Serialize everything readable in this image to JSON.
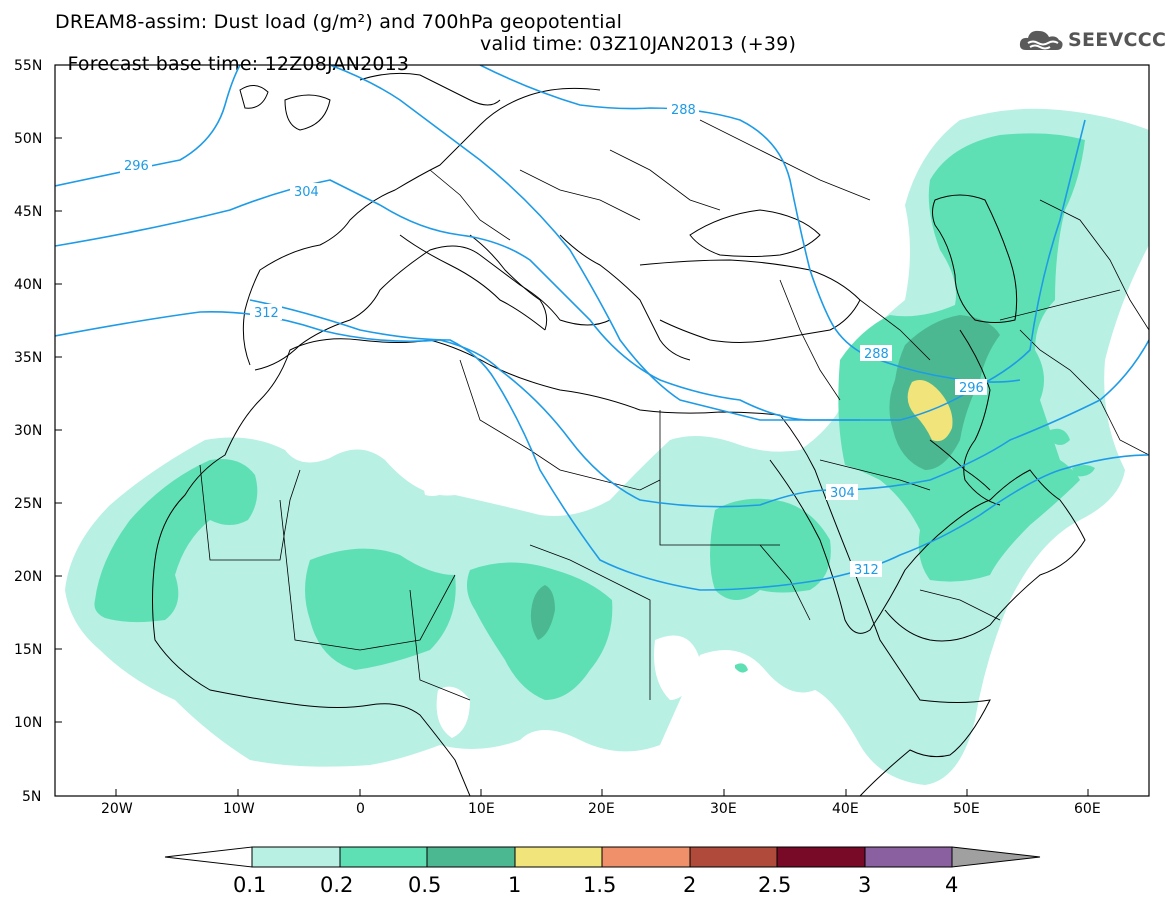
{
  "title": {
    "line1": "DREAM8-assim: Dust load (g/m²) and 700hPa geopotential",
    "base": "Forecast base time: 12Z08JAN2013",
    "valid": "valid time: 03Z10JAN2013 (+39)"
  },
  "logo": {
    "text": "SEEVCCC",
    "icon": "cloud-icon"
  },
  "map": {
    "lat_labels": [
      "55N",
      "50N",
      "45N",
      "40N",
      "35N",
      "30N",
      "25N",
      "20N",
      "15N",
      "10N",
      "5N"
    ],
    "lon_labels": [
      "20W",
      "10W",
      "0",
      "10E",
      "20E",
      "30E",
      "40E",
      "50E",
      "60E"
    ],
    "contour_labels": [
      "288",
      "296",
      "304",
      "312",
      "288",
      "296",
      "304",
      "312"
    ],
    "contour_color": "#1e9be6"
  },
  "colorbar": {
    "labels": [
      "0.1",
      "0.2",
      "0.5",
      "1",
      "1.5",
      "2",
      "2.5",
      "3",
      "4"
    ],
    "colors": [
      "#b8f0e4",
      "#5ee0b4",
      "#4cb892",
      "#f0e47a",
      "#f0906a",
      "#b04a3a",
      "#780a28",
      "#8a60a0",
      "#a0a0a0"
    ]
  }
}
